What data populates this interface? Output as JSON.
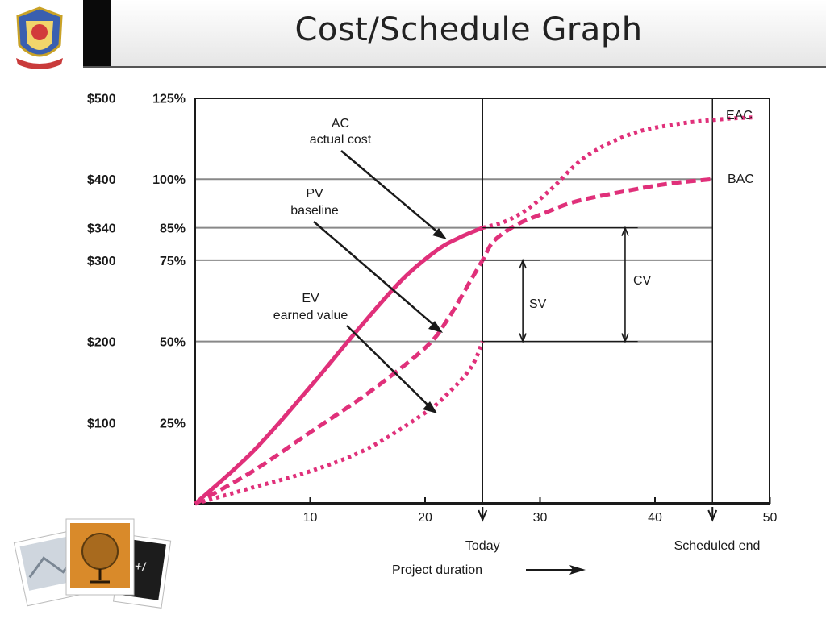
{
  "slide": {
    "title": "Cost/Schedule Graph"
  },
  "colors": {
    "curve": "#e0307a",
    "grid": "#888888",
    "ink": "#1a1a1a"
  },
  "icons": [
    "school-crest-logo",
    "photo-stack-decoration"
  ],
  "chart_data": {
    "type": "line",
    "title": "Cost/Schedule Graph",
    "xlabel": "Project duration",
    "xlim": [
      0,
      50
    ],
    "ylim": [
      0,
      125
    ],
    "x_ticks": [
      {
        "v": 10,
        "label": "10"
      },
      {
        "v": 20,
        "label": "20"
      },
      {
        "v": 30,
        "label": "30"
      },
      {
        "v": 40,
        "label": "40"
      },
      {
        "v": 50,
        "label": "50"
      }
    ],
    "y_ticks": [
      {
        "v": 125,
        "dollar": "$500",
        "pct": "125%",
        "grid": false
      },
      {
        "v": 100,
        "dollar": "$400",
        "pct": "100%",
        "grid": true
      },
      {
        "v": 85,
        "dollar": "$340",
        "pct": "85%",
        "grid": true
      },
      {
        "v": 75,
        "dollar": "$300",
        "pct": "75%",
        "grid": true
      },
      {
        "v": 50,
        "dollar": "$200",
        "pct": "50%",
        "grid": true
      },
      {
        "v": 25,
        "dollar": "$100",
        "pct": "25%",
        "grid": false
      }
    ],
    "markers": [
      {
        "x": 25,
        "label": "Today"
      },
      {
        "x": 45,
        "label": "Scheduled end"
      }
    ],
    "series": [
      {
        "name": "AC",
        "style": "solid",
        "x": [
          0,
          5,
          10,
          14,
          18,
          21,
          23,
          25
        ],
        "y": [
          0,
          16,
          36,
          53,
          69,
          78,
          82,
          85
        ]
      },
      {
        "name": "PV",
        "style": "dashed",
        "x": [
          0,
          5,
          10,
          15,
          20,
          22,
          24,
          25,
          26,
          28,
          30,
          33,
          37,
          41,
          45
        ],
        "y": [
          0,
          10,
          22,
          34,
          48,
          57,
          69,
          75,
          81,
          86,
          89,
          93,
          96,
          98.5,
          100
        ]
      },
      {
        "name": "EV",
        "style": "dotted",
        "x": [
          0,
          5,
          10,
          15,
          20,
          22,
          24,
          25
        ],
        "y": [
          0,
          5,
          10,
          17,
          28,
          34,
          42,
          50
        ]
      },
      {
        "name": "EAC forecast",
        "style": "dotted",
        "x": [
          25,
          27,
          29,
          31,
          34,
          38,
          42,
          46,
          48.5
        ],
        "y": [
          85,
          87,
          91,
          97,
          107,
          114,
          117,
          118.5,
          119
        ]
      }
    ],
    "annotations": {
      "ac": [
        "AC",
        "actual cost"
      ],
      "pv": [
        "PV",
        "baseline"
      ],
      "ev": [
        "EV",
        "earned value"
      ],
      "eac": "EAC",
      "bac": "BAC",
      "sv": "SV",
      "cv": "CV",
      "duration_label": "Project duration"
    }
  }
}
